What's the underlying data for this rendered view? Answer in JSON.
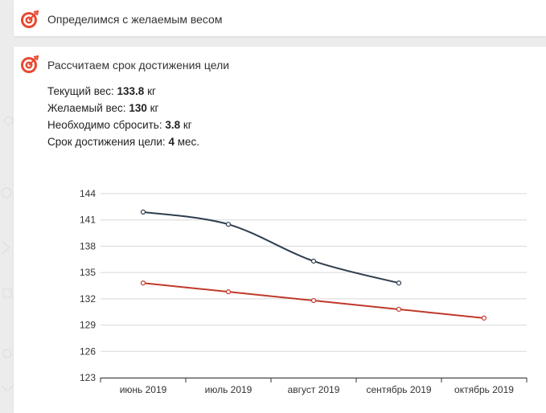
{
  "cards": [
    {
      "title": "Определимся с желаемым весом"
    },
    {
      "title": "Рассчитаем срок достижения цели"
    }
  ],
  "stats": [
    {
      "label": "Текущий вес: ",
      "value": "133.8",
      "unit": " кг"
    },
    {
      "label": "Желаемый вес: ",
      "value": "130",
      "unit": " кг"
    },
    {
      "label": "Необходимо сбросить: ",
      "value": "3.8",
      "unit": " кг"
    },
    {
      "label": "Срок достижения цели: ",
      "value": "4",
      "unit": " мес."
    }
  ],
  "colors": {
    "accent": "#e8492f",
    "series_dark": "#2f3e4e",
    "series_red": "#c0392b",
    "grid": "#d8d8d8"
  },
  "chart_data": {
    "type": "line",
    "categories": [
      "июнь 2019",
      "июль 2019",
      "август 2019",
      "сентябрь 2019",
      "октябрь 2019"
    ],
    "ylim": [
      123,
      144
    ],
    "yticks": [
      144,
      141,
      138,
      135,
      132,
      129,
      126,
      123
    ],
    "grid": true,
    "series": [
      {
        "values": [
          141.9,
          140.5,
          136.3,
          133.8,
          null
        ],
        "color": "#2f3e4e"
      },
      {
        "values": [
          133.8,
          132.8,
          131.8,
          130.8,
          129.8
        ],
        "color": "#c0392b"
      }
    ]
  }
}
